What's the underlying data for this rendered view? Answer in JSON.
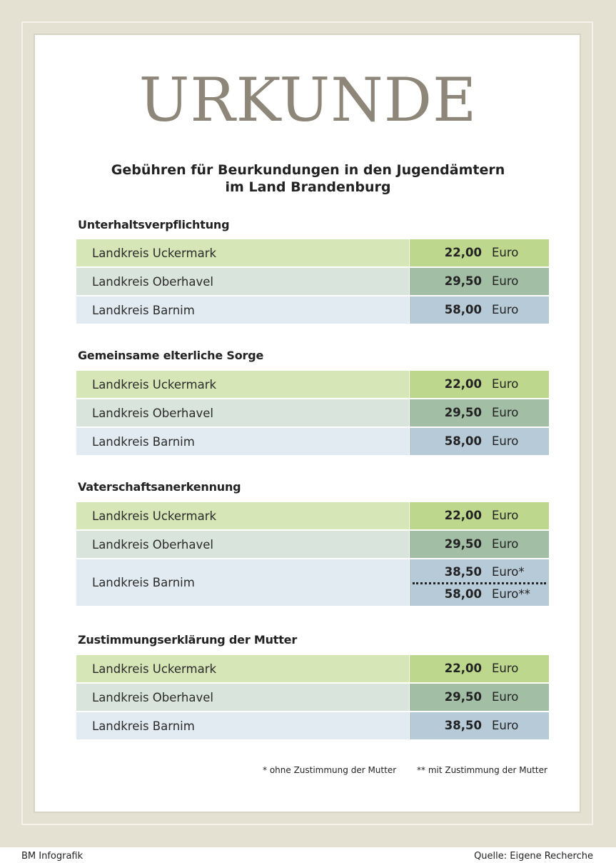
{
  "title": "URKUNDE",
  "subtitle": [
    "Gebühren für Beurkundungen in den Jugendämtern",
    "im Land Brandenburg"
  ],
  "sections": [
    {
      "title": "Unterhaltsverpflichtung",
      "rows": [
        {
          "name": "Landkreis Uckermark",
          "amounts": [
            {
              "value": "22,00",
              "currency": "Euro"
            }
          ]
        },
        {
          "name": "Landkreis Oberhavel",
          "amounts": [
            {
              "value": "29,50",
              "currency": "Euro"
            }
          ]
        },
        {
          "name": "Landkreis Barnim",
          "amounts": [
            {
              "value": "58,00",
              "currency": "Euro"
            }
          ]
        }
      ]
    },
    {
      "title": "Gemeinsame elterliche Sorge",
      "rows": [
        {
          "name": "Landkreis Uckermark",
          "amounts": [
            {
              "value": "22,00",
              "currency": "Euro"
            }
          ]
        },
        {
          "name": "Landkreis Oberhavel",
          "amounts": [
            {
              "value": "29,50",
              "currency": "Euro"
            }
          ]
        },
        {
          "name": "Landkreis Barnim",
          "amounts": [
            {
              "value": "58,00",
              "currency": "Euro"
            }
          ]
        }
      ]
    },
    {
      "title": "Vaterschaftsanerkennung",
      "rows": [
        {
          "name": "Landkreis Uckermark",
          "amounts": [
            {
              "value": "22,00",
              "currency": "Euro"
            }
          ]
        },
        {
          "name": "Landkreis Oberhavel",
          "amounts": [
            {
              "value": "29,50",
              "currency": "Euro"
            }
          ]
        },
        {
          "name": "Landkreis Barnim",
          "amounts": [
            {
              "value": "38,50",
              "currency": "Euro*"
            },
            {
              "value": "58,00",
              "currency": "Euro**"
            }
          ]
        }
      ]
    },
    {
      "title": "Zustimmungserklärung der Mutter",
      "rows": [
        {
          "name": "Landkreis Uckermark",
          "amounts": [
            {
              "value": "22,00",
              "currency": "Euro"
            }
          ]
        },
        {
          "name": "Landkreis Oberhavel",
          "amounts": [
            {
              "value": "29,50",
              "currency": "Euro"
            }
          ]
        },
        {
          "name": "Landkreis Barnim",
          "amounts": [
            {
              "value": "38,50",
              "currency": "Euro"
            }
          ]
        }
      ]
    }
  ],
  "footnotes": [
    "*  ohne Zustimmung der Mutter",
    "** mit Zustimmung  der Mutter"
  ],
  "credit": "BM Infografik",
  "source": "Quelle: Eigene Recherche",
  "colors": {
    "background": "#e4e1d2",
    "title": "#8f867a",
    "row_green_label": "#d7e6b7",
    "row_green_value": "#bdd88d",
    "row_gray_label": "#d9e4dc",
    "row_gray_value": "#a2bea5",
    "row_blue_label": "#e2ebf1",
    "row_blue_value": "#b7cad8"
  }
}
